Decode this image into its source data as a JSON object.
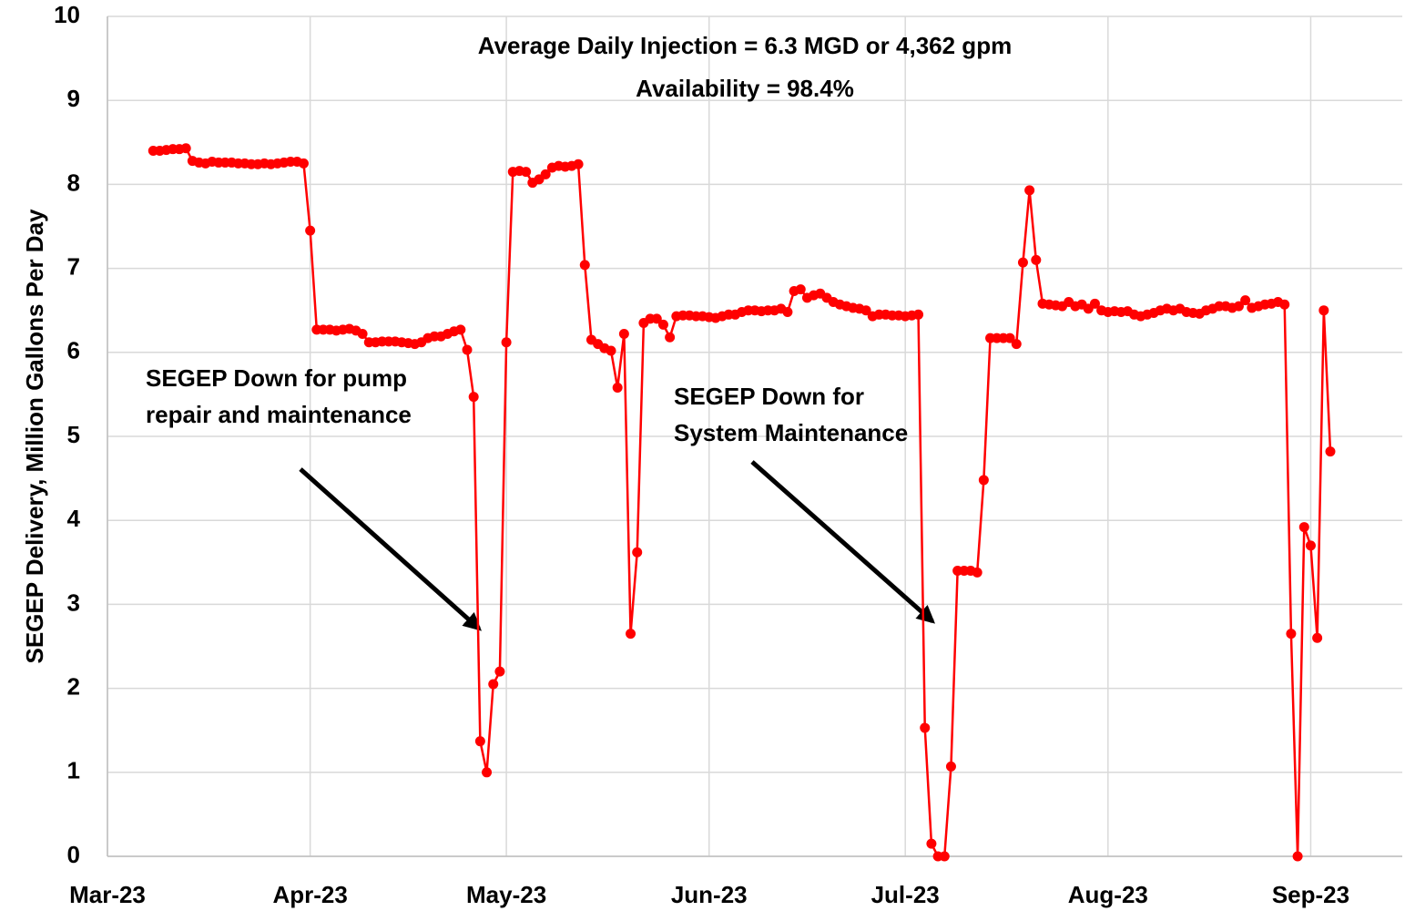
{
  "chart_data": {
    "type": "line",
    "title_lines": [
      "Average Daily Injection = 6.3 MGD or 4,362 gpm",
      "Availability = 98.4%"
    ],
    "ylabel": "SEGEP Delivery, Million Gallons Per Day",
    "annotations": [
      {
        "lines": [
          "SEGEP Down for pump",
          "repair and maintenance"
        ]
      },
      {
        "lines": [
          "SEGEP Down for",
          "System Maintenance"
        ]
      }
    ],
    "xlim": [
      0,
      198
    ],
    "xticks": [
      {
        "value": 0,
        "label": "Mar-23"
      },
      {
        "value": 31,
        "label": "Apr-23"
      },
      {
        "value": 61,
        "label": "May-23"
      },
      {
        "value": 92,
        "label": "Jun-23"
      },
      {
        "value": 122,
        "label": "Jul-23"
      },
      {
        "value": 153,
        "label": "Aug-23"
      },
      {
        "value": 184,
        "label": "Sep-23"
      }
    ],
    "ylim": [
      0,
      10
    ],
    "yticks": [
      0,
      1,
      2,
      3,
      4,
      5,
      6,
      7,
      8,
      9,
      10
    ],
    "grid": true,
    "x": [
      7,
      8,
      9,
      10,
      11,
      12,
      13,
      14,
      15,
      16,
      17,
      18,
      19,
      20,
      21,
      22,
      23,
      24,
      25,
      26,
      27,
      28,
      29,
      30,
      31,
      32,
      33,
      34,
      35,
      36,
      37,
      38,
      39,
      40,
      41,
      42,
      43,
      44,
      45,
      46,
      47,
      48,
      49,
      50,
      51,
      52,
      53,
      54,
      55,
      56,
      57,
      58,
      59,
      60,
      61,
      62,
      63,
      64,
      65,
      66,
      67,
      68,
      69,
      70,
      71,
      72,
      73,
      74,
      75,
      76,
      77,
      78,
      79,
      80,
      81,
      82,
      83,
      84,
      85,
      86,
      87,
      88,
      89,
      90,
      91,
      92,
      93,
      94,
      95,
      96,
      97,
      98,
      99,
      100,
      101,
      102,
      103,
      104,
      105,
      106,
      107,
      108,
      109,
      110,
      111,
      112,
      113,
      114,
      115,
      116,
      117,
      118,
      119,
      120,
      121,
      122,
      123,
      124,
      125,
      126,
      127,
      128,
      129,
      130,
      131,
      132,
      133,
      134,
      135,
      136,
      137,
      138,
      139,
      140,
      141,
      142,
      143,
      144,
      145,
      146,
      147,
      148,
      149,
      150,
      151,
      152,
      153,
      154,
      155,
      156,
      157,
      158,
      159,
      160,
      161,
      162,
      163,
      164,
      165,
      166,
      167,
      168,
      169,
      170,
      171,
      172,
      173,
      174,
      175,
      176,
      177,
      178,
      179,
      180,
      181,
      182,
      183,
      184,
      185,
      186,
      187
    ],
    "series": [
      {
        "name": "SEGEP Delivery",
        "color": "#ff0000",
        "values": [
          8.4,
          8.4,
          8.41,
          8.42,
          8.42,
          8.43,
          8.28,
          8.26,
          8.25,
          8.27,
          8.26,
          8.26,
          8.26,
          8.25,
          8.25,
          8.24,
          8.24,
          8.25,
          8.24,
          8.25,
          8.26,
          8.27,
          8.27,
          8.25,
          7.45,
          6.27,
          6.27,
          6.27,
          6.26,
          6.27,
          6.28,
          6.26,
          6.22,
          6.12,
          6.12,
          6.13,
          6.13,
          6.13,
          6.12,
          6.11,
          6.1,
          6.12,
          6.17,
          6.19,
          6.19,
          6.22,
          6.25,
          6.27,
          6.03,
          5.47,
          1.37,
          1.0,
          2.05,
          2.2,
          6.12,
          8.15,
          8.16,
          8.15,
          8.02,
          8.06,
          8.12,
          8.2,
          8.22,
          8.21,
          8.22,
          8.24,
          7.04,
          6.15,
          6.1,
          6.05,
          6.02,
          5.58,
          6.22,
          2.65,
          3.62,
          6.35,
          6.4,
          6.4,
          6.33,
          6.18,
          6.43,
          6.44,
          6.44,
          6.43,
          6.43,
          6.42,
          6.41,
          6.43,
          6.45,
          6.45,
          6.48,
          6.5,
          6.5,
          6.49,
          6.5,
          6.5,
          6.52,
          6.48,
          6.73,
          6.75,
          6.65,
          6.68,
          6.7,
          6.65,
          6.6,
          6.57,
          6.55,
          6.53,
          6.52,
          6.5,
          6.43,
          6.45,
          6.45,
          6.44,
          6.44,
          6.43,
          6.44,
          6.45,
          1.53,
          0.15,
          0,
          0,
          1.07,
          3.4,
          3.4,
          3.4,
          3.38,
          4.48,
          6.17,
          6.17,
          6.17,
          6.17,
          6.1,
          7.07,
          7.93,
          7.1,
          6.58,
          6.57,
          6.56,
          6.55,
          6.6,
          6.55,
          6.57,
          6.52,
          6.58,
          6.5,
          6.48,
          6.49,
          6.48,
          6.49,
          6.45,
          6.43,
          6.45,
          6.47,
          6.5,
          6.52,
          6.5,
          6.52,
          6.48,
          6.47,
          6.46,
          6.5,
          6.52,
          6.55,
          6.55,
          6.53,
          6.55,
          6.62,
          6.53,
          6.55,
          6.57,
          6.58,
          6.6,
          6.57,
          2.65,
          0,
          3.92,
          3.7,
          2.6,
          6.5,
          4.82
        ]
      }
    ]
  }
}
